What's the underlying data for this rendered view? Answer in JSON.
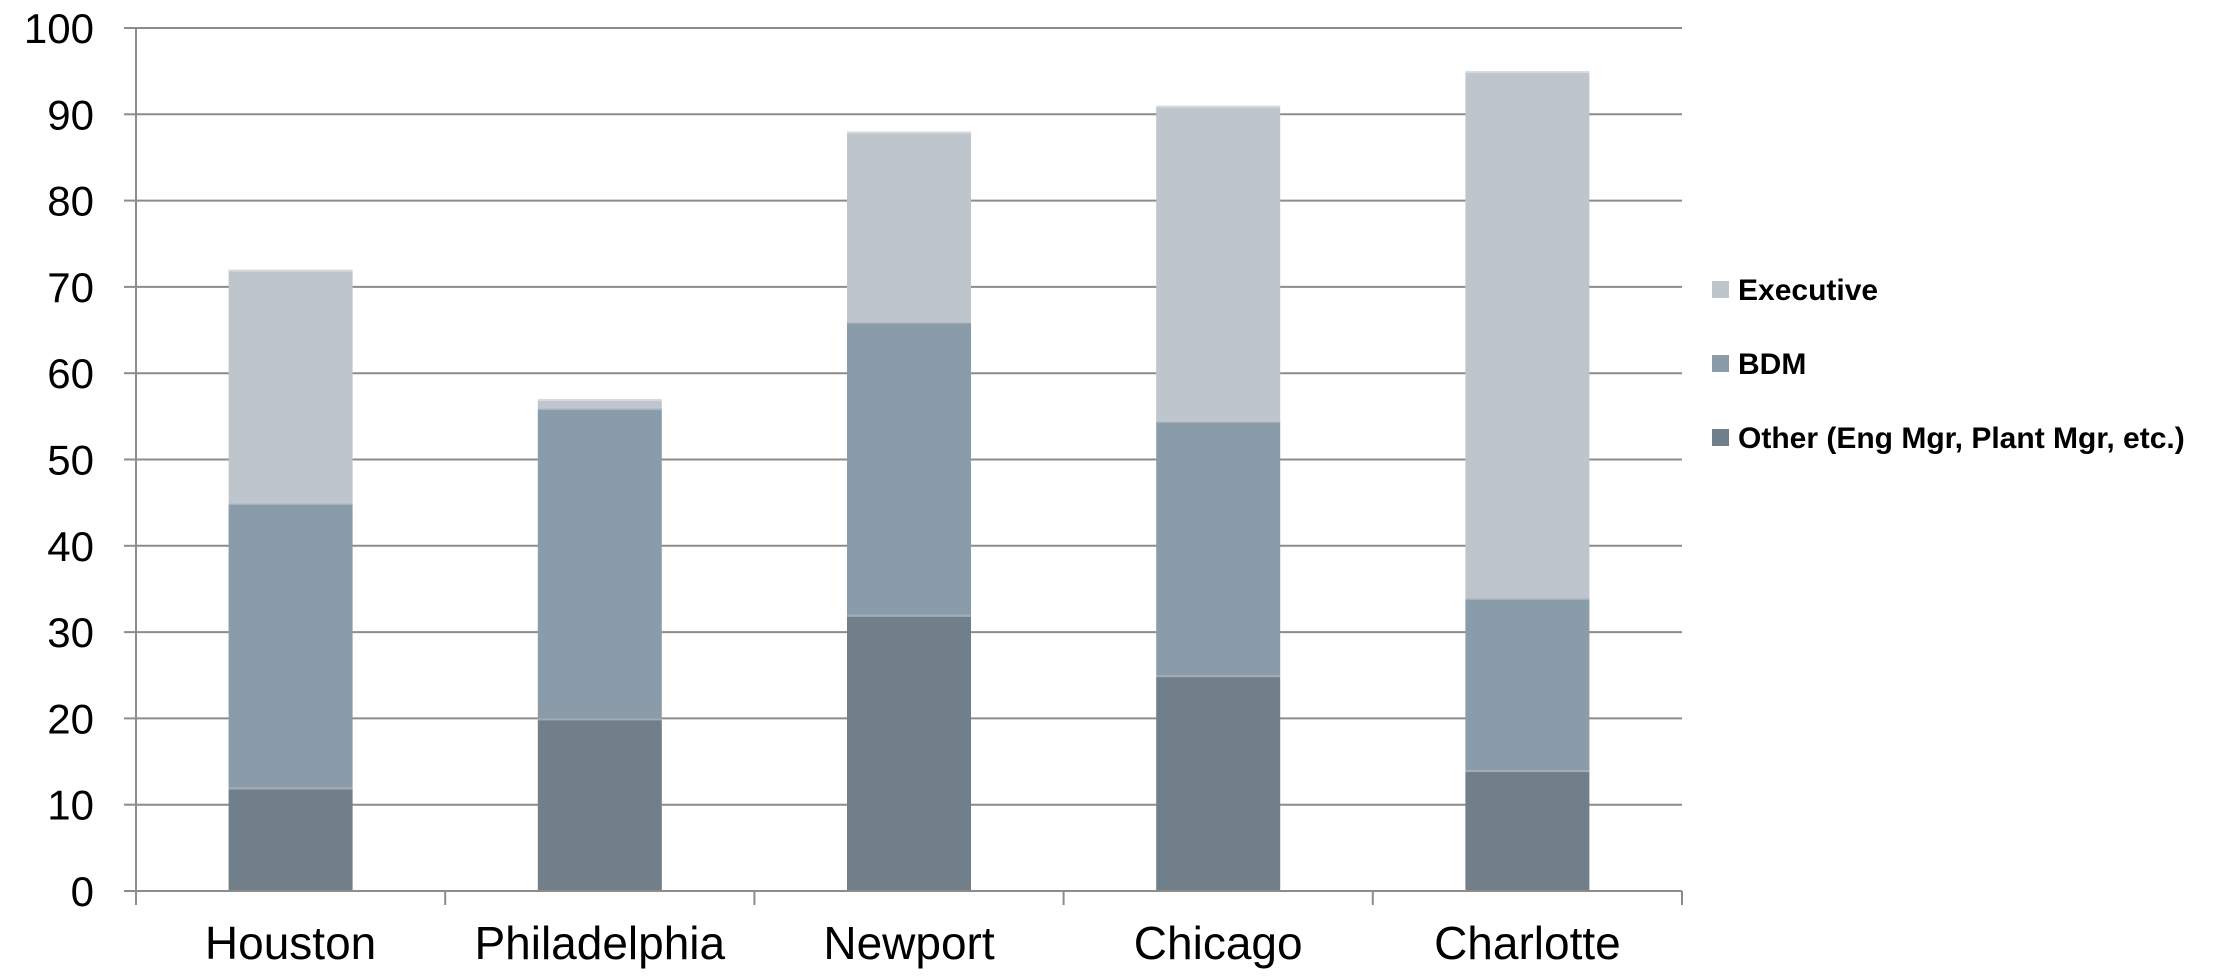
{
  "chart_data": {
    "type": "bar",
    "stacked": true,
    "categories": [
      "Houston",
      "Philadelphia",
      "Newport",
      "Chicago",
      "Charlotte"
    ],
    "series": [
      {
        "name": "Other (Eng Mgr, Plant Mgr, etc.)",
        "values": [
          12,
          20,
          32,
          25,
          14
        ],
        "color": "#707f8a"
      },
      {
        "name": "BDM",
        "values": [
          33,
          36,
          34,
          29.5,
          20
        ],
        "color": "#8a9ca9"
      },
      {
        "name": "Executive",
        "values": [
          27,
          1,
          22,
          36.5,
          61
        ],
        "color": "#bec5cc"
      }
    ],
    "ylim": [
      0,
      100
    ],
    "yticks": [
      "0",
      "10",
      "20",
      "30",
      "40",
      "50",
      "60",
      "70",
      "80",
      "90",
      "100"
    ],
    "grid": true,
    "legend": {
      "position": "right",
      "order": [
        "Executive",
        "BDM",
        "Other (Eng Mgr, Plant Mgr, etc.)"
      ]
    }
  }
}
